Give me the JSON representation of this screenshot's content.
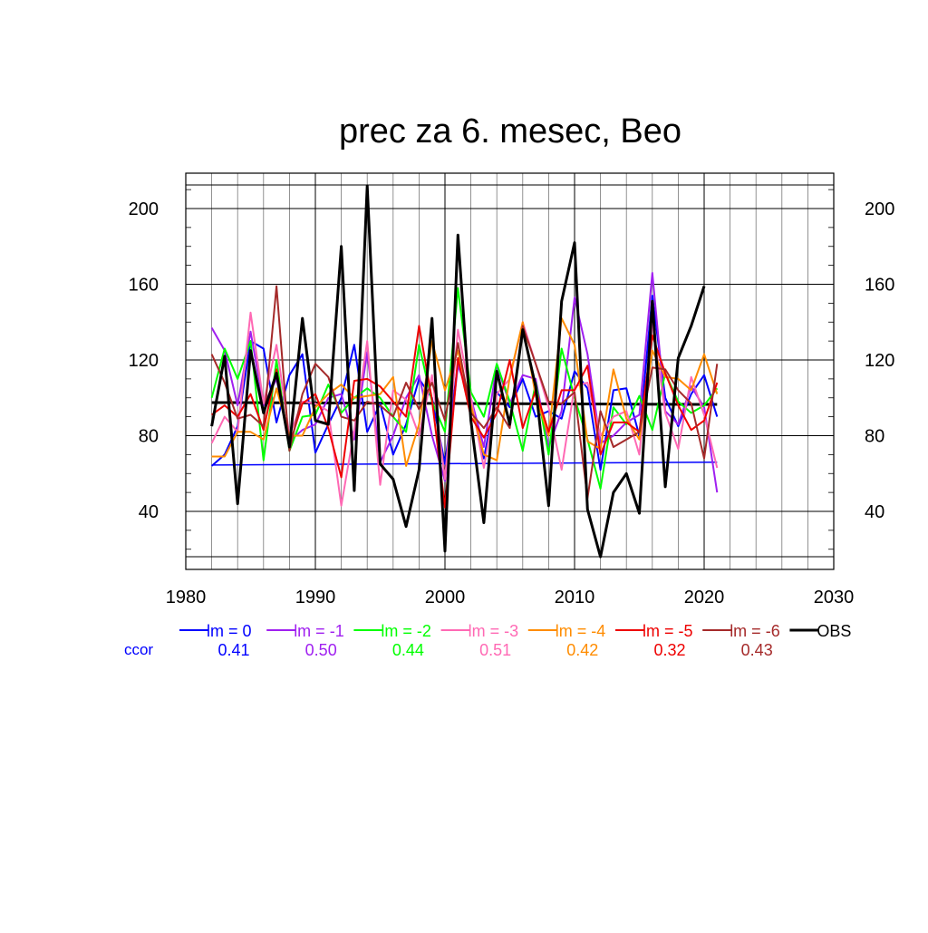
{
  "chart_data": {
    "type": "line",
    "title": "prec za 6. mesec, Beo",
    "xlabel": "",
    "ylabel": "",
    "xlim": [
      1980,
      2030
    ],
    "ylim": [
      12,
      215
    ],
    "x_ticks": [
      1980,
      1990,
      2000,
      2010,
      2020,
      2030
    ],
    "y_ticks": [
      40,
      80,
      120,
      160,
      200
    ],
    "grid": true,
    "x": [
      1982,
      1983,
      1984,
      1985,
      1986,
      1987,
      1988,
      1989,
      1990,
      1991,
      1992,
      1993,
      1994,
      1995,
      1996,
      1997,
      1998,
      1999,
      2000,
      2001,
      2002,
      2003,
      2004,
      2005,
      2006,
      2007,
      2008,
      2009,
      2010,
      2011,
      2012,
      2013,
      2014,
      2015,
      2016,
      2017,
      2018,
      2019,
      2020,
      2021
    ],
    "series": [
      {
        "name": "lm = 0",
        "color": "#0000ff",
        "values": [
          64,
          70,
          85,
          130,
          126,
          87,
          112,
          123,
          71,
          86,
          100,
          128,
          82,
          97,
          70,
          86,
          110,
          100,
          65,
          118,
          97,
          68,
          103,
          95,
          110,
          90,
          93,
          89,
          114,
          105,
          62,
          104,
          105,
          80,
          154,
          100,
          85,
          102,
          112,
          90
        ]
      },
      {
        "name": "lm = -1",
        "color": "#a020f0",
        "values": [
          137,
          125,
          96,
          135,
          96,
          110,
          77,
          83,
          86,
          100,
          102,
          78,
          124,
          66,
          80,
          100,
          112,
          80,
          56,
          117,
          100,
          74,
          117,
          97,
          112,
          110,
          74,
          93,
          153,
          123,
          76,
          80,
          87,
          91,
          166,
          93,
          86,
          106,
          95,
          50
        ]
      },
      {
        "name": "lm = -2",
        "color": "#00ff00",
        "values": [
          100,
          126,
          110,
          130,
          67,
          120,
          72,
          90,
          91,
          107,
          92,
          100,
          105,
          100,
          90,
          82,
          128,
          98,
          82,
          158,
          103,
          90,
          118,
          98,
          72,
          108,
          70,
          126,
          100,
          78,
          52,
          95,
          86,
          101,
          83,
          113,
          98,
          92,
          96,
          105
        ]
      },
      {
        "name": "lm = -3",
        "color": "#ff69b4",
        "values": [
          76,
          90,
          82,
          145,
          97,
          128,
          80,
          98,
          97,
          93,
          43,
          83,
          130,
          54,
          104,
          99,
          80,
          112,
          57,
          136,
          100,
          63,
          102,
          110,
          140,
          118,
          95,
          62,
          106,
          108,
          80,
          90,
          93,
          70,
          140,
          92,
          73,
          111,
          91,
          63
        ]
      },
      {
        "name": "lm = -4",
        "color": "#ff8c00",
        "values": [
          69,
          69,
          82,
          82,
          78,
          105,
          80,
          80,
          95,
          102,
          107,
          100,
          101,
          102,
          111,
          64,
          86,
          130,
          104,
          125,
          96,
          70,
          67,
          111,
          140,
          101,
          80,
          142,
          128,
          77,
          73,
          115,
          89,
          78,
          125,
          111,
          110,
          104,
          123,
          102
        ]
      },
      {
        "name": "lm = -5",
        "color": "#ee0000",
        "values": [
          91,
          96,
          90,
          102,
          83,
          115,
          75,
          97,
          102,
          84,
          58,
          109,
          110,
          106,
          98,
          90,
          138,
          99,
          42,
          121,
          90,
          79,
          92,
          120,
          84,
          104,
          82,
          104,
          104,
          117,
          70,
          87,
          87,
          82,
          133,
          113,
          96,
          83,
          88,
          108
        ]
      },
      {
        "name": "lm = -6",
        "color": "#a52a2a",
        "values": [
          123,
          108,
          89,
          91,
          85,
          159,
          72,
          102,
          118,
          111,
          90,
          88,
          98,
          96,
          90,
          108,
          94,
          108,
          88,
          129,
          92,
          84,
          95,
          84,
          138,
          118,
          98,
          97,
          103,
          47,
          93,
          74,
          78,
          82,
          116,
          115,
          104,
          97,
          68,
          118
        ]
      },
      {
        "name": "OBS",
        "color": "#000000",
        "values": [
          85,
          122,
          44,
          125,
          92,
          113,
          74,
          142,
          88,
          86,
          180,
          51,
          212,
          65,
          57,
          32,
          62,
          142,
          19,
          186,
          88,
          34,
          114,
          86,
          136,
          106,
          43,
          151,
          182,
          41,
          16,
          50,
          60,
          39,
          151,
          53,
          121,
          138,
          159,
          null
        ]
      }
    ],
    "horizontal_lines": [
      {
        "name": "lm = 0 mean",
        "color": "#0000ff",
        "x": [
          1982,
          2021
        ],
        "values": [
          64.5,
          66
        ]
      },
      {
        "name": "OBS mean",
        "color": "#000000",
        "x": [
          1982,
          2021
        ],
        "values": [
          97.5,
          96.5
        ]
      }
    ],
    "legend": {
      "placement": "bottom",
      "row_label": "ccor",
      "entries": [
        {
          "label": "lm = 0",
          "color": "#0000ff",
          "ccor": "0.41"
        },
        {
          "label": "lm = -1",
          "color": "#a020f0",
          "ccor": "0.50"
        },
        {
          "label": "lm = -2",
          "color": "#00ff00",
          "ccor": "0.44"
        },
        {
          "label": "lm = -3",
          "color": "#ff69b4",
          "ccor": "0.51"
        },
        {
          "label": "lm = -4",
          "color": "#ff8c00",
          "ccor": "0.42"
        },
        {
          "label": "lm = -5",
          "color": "#ee0000",
          "ccor": "0.32"
        },
        {
          "label": "lm = -6",
          "color": "#a52a2a",
          "ccor": "0.43"
        },
        {
          "label": "OBS",
          "color": "#000000",
          "ccor": ""
        }
      ]
    }
  }
}
